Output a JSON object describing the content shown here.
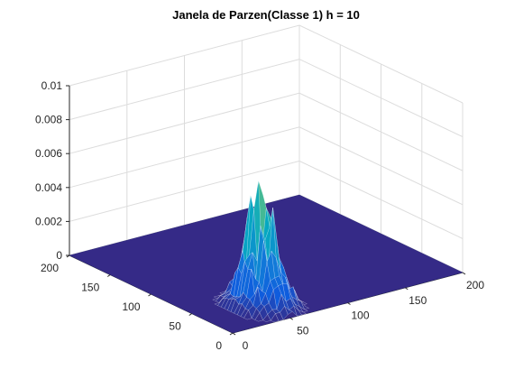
{
  "chart_data": {
    "type": "surface",
    "title": "Janela de Parzen(Classe 1) h = 10",
    "xlabel": "",
    "ylabel": "",
    "zlabel": "",
    "xlim": [
      0,
      200
    ],
    "ylim": [
      0,
      200
    ],
    "zlim": [
      0,
      0.01
    ],
    "x_ticks": [
      "0",
      "50",
      "100",
      "150",
      "200"
    ],
    "y_ticks": [
      "0",
      "50",
      "100",
      "150",
      "200"
    ],
    "z_ticks": [
      "0",
      "0.002",
      "0.004",
      "0.006",
      "0.008",
      "0.01"
    ],
    "grid": true,
    "colormap": "parula",
    "floor_color": "#352a87",
    "peak": {
      "x": 50,
      "y": 35,
      "z": 0.0069
    },
    "spread": {
      "sx": 10,
      "sy": 14
    }
  }
}
